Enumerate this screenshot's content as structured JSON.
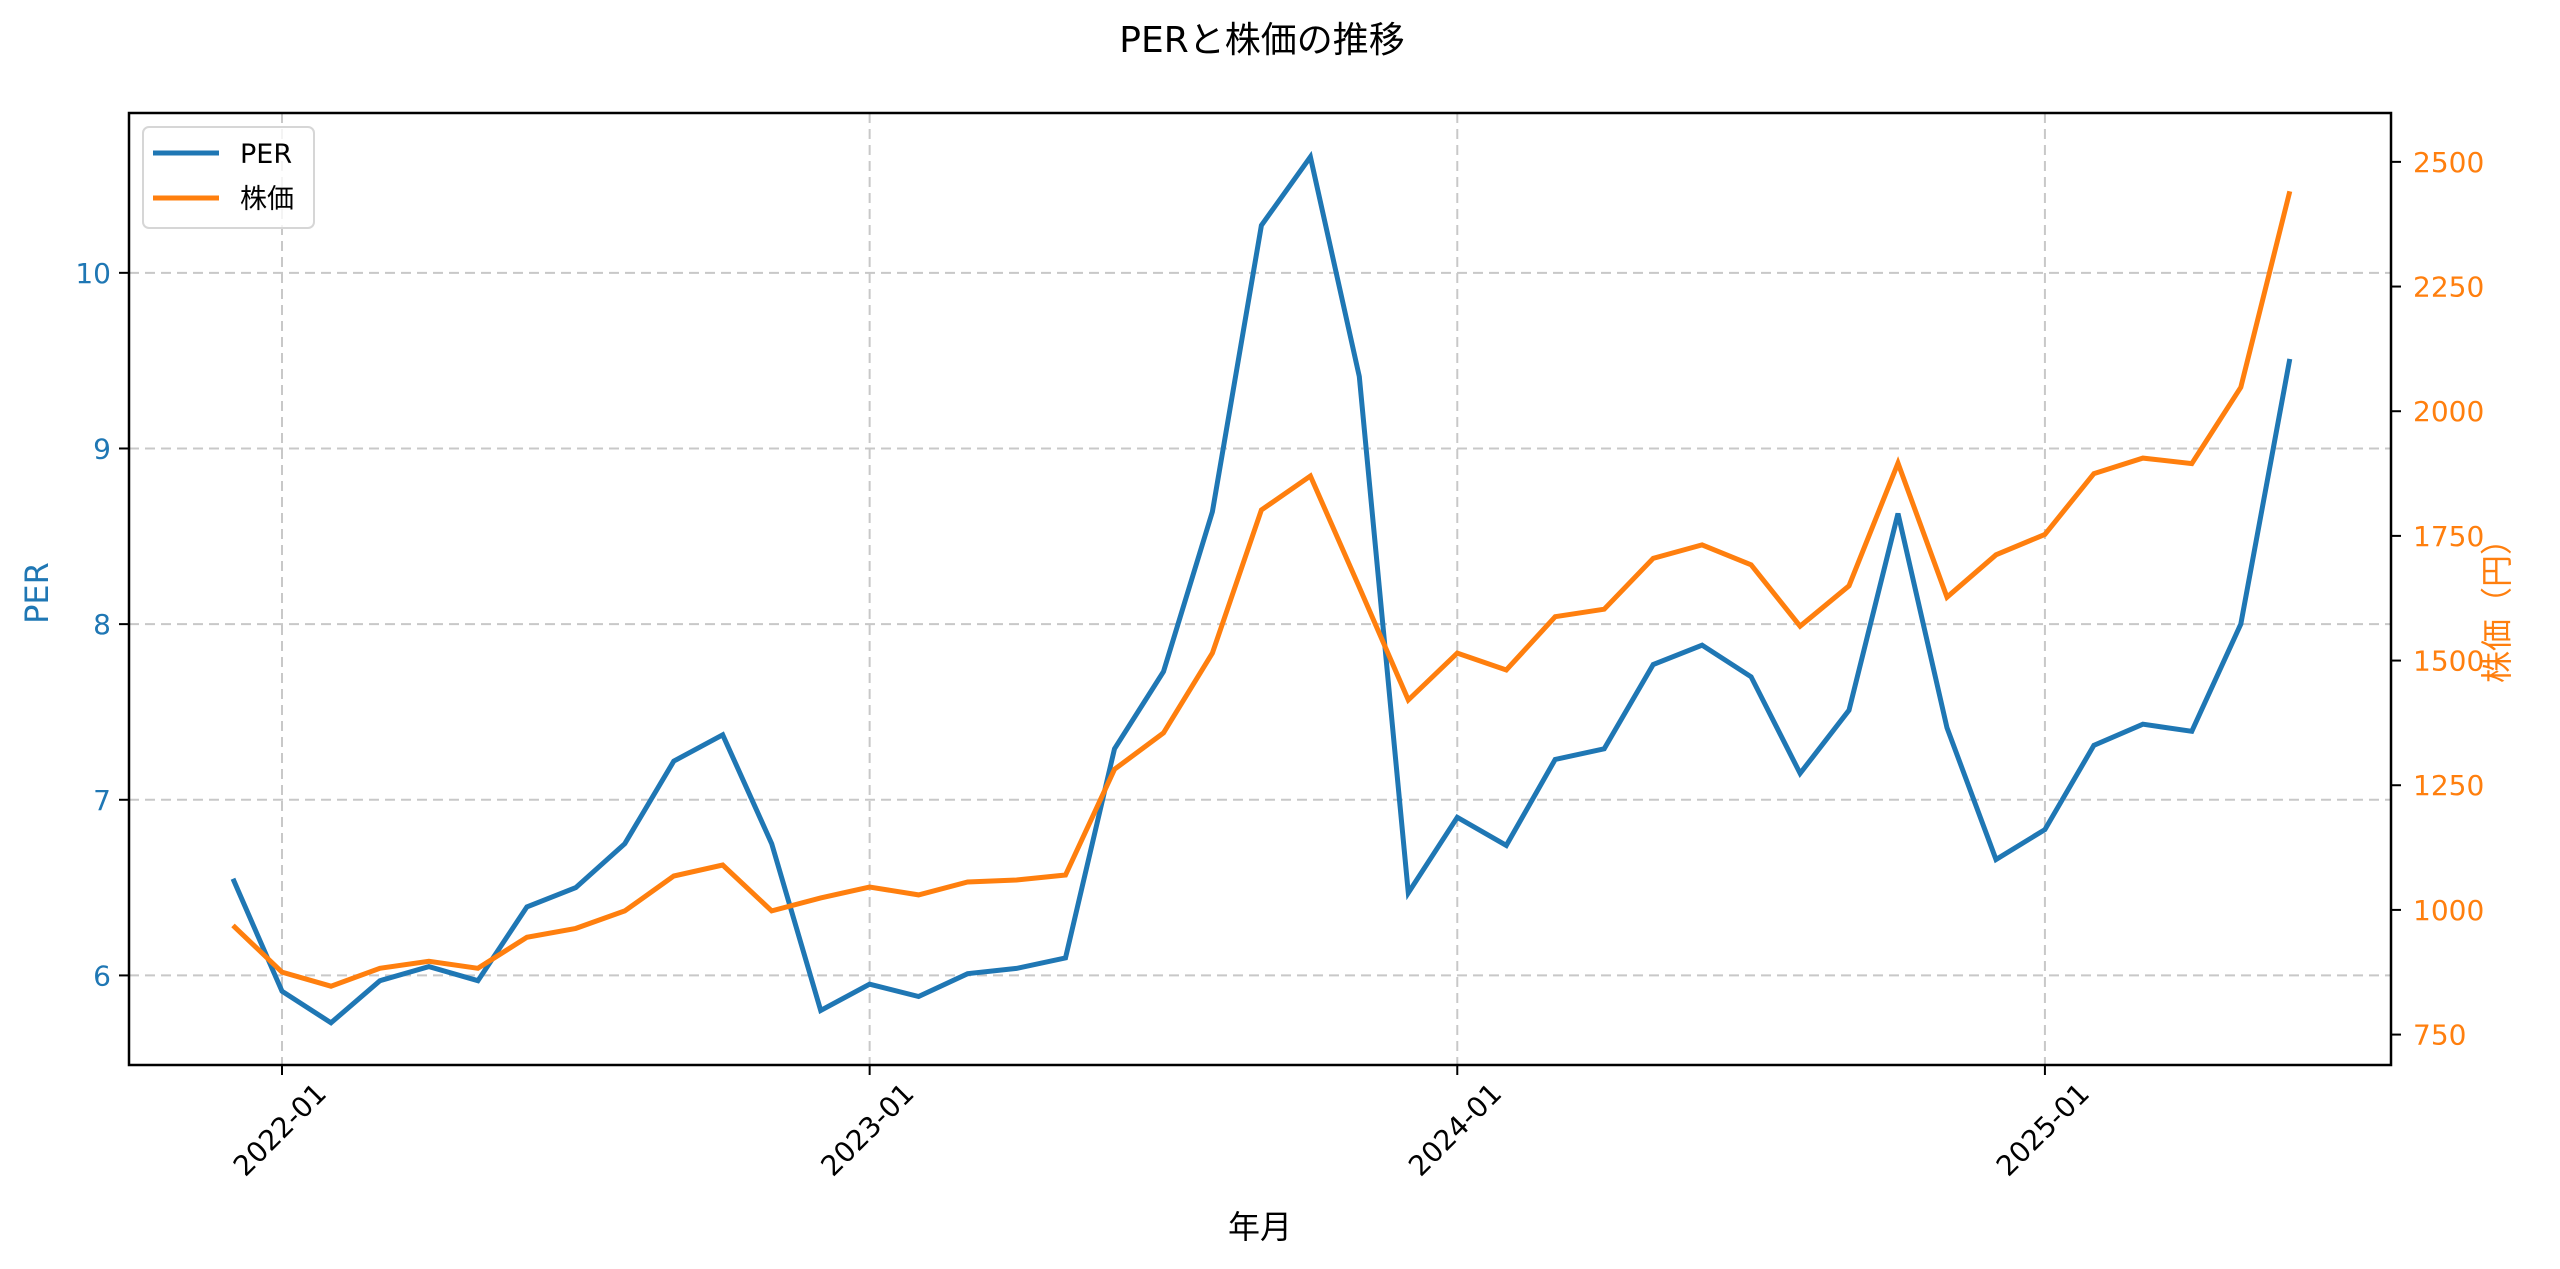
{
  "chart_data": {
    "type": "line",
    "title": "PERと株価の推移",
    "xlabel": "年月",
    "ylabel": "PER",
    "y2label": "株価（円）",
    "x": [
      "2021-12",
      "2022-01",
      "2022-02",
      "2022-03",
      "2022-04",
      "2022-05",
      "2022-06",
      "2022-07",
      "2022-08",
      "2022-09",
      "2022-10",
      "2022-11",
      "2022-12",
      "2023-01",
      "2023-02",
      "2023-03",
      "2023-04",
      "2023-05",
      "2023-06",
      "2023-07",
      "2023-08",
      "2023-09",
      "2023-10",
      "2023-11",
      "2023-12",
      "2024-01",
      "2024-02",
      "2024-03",
      "2024-04",
      "2024-05",
      "2024-06",
      "2024-07",
      "2024-08",
      "2024-09",
      "2024-10",
      "2024-11",
      "2024-12",
      "2025-01",
      "2025-02",
      "2025-03",
      "2025-04",
      "2025-05",
      "2025-06"
    ],
    "x_ticks": [
      "2022-01",
      "2023-01",
      "2024-01",
      "2025-01"
    ],
    "x_tick_index": [
      1,
      13,
      25,
      37
    ],
    "series": [
      {
        "name": "PER",
        "axis": "left",
        "color": "#1f77b4",
        "values": [
          6.55,
          5.91,
          5.73,
          5.97,
          6.05,
          5.97,
          6.39,
          6.5,
          6.75,
          7.22,
          7.37,
          6.75,
          5.8,
          5.95,
          5.88,
          6.01,
          6.04,
          6.1,
          7.29,
          7.73,
          8.64,
          10.27,
          10.66,
          9.41,
          6.47,
          6.9,
          6.74,
          7.23,
          7.29,
          7.77,
          7.88,
          7.7,
          7.15,
          7.51,
          8.63,
          7.41,
          6.66,
          6.83,
          7.31,
          7.43,
          7.39,
          8.0,
          9.51
        ]
      },
      {
        "name": "株価",
        "axis": "right",
        "color": "#ff7f0e",
        "values": [
          969,
          875,
          847,
          883,
          897,
          883,
          945,
          963,
          998,
          1068,
          1090,
          998,
          1024,
          1046,
          1030,
          1056,
          1060,
          1070,
          1282,
          1355,
          1515,
          1802,
          1870,
          1647,
          1421,
          1515,
          1481,
          1588,
          1603,
          1705,
          1732,
          1692,
          1569,
          1650,
          1896,
          1627,
          1712,
          1753,
          1875,
          1906,
          1895,
          2048,
          2441
        ]
      }
    ],
    "ylim": [
      5.49,
      10.91
    ],
    "y_ticks": [
      6,
      7,
      8,
      9,
      10
    ],
    "y2lim": [
      689,
      2598
    ],
    "y2_ticks": [
      750,
      1000,
      1250,
      1500,
      1750,
      2000,
      2250,
      2500
    ],
    "grid": true,
    "legend_position": "upper left"
  },
  "colors": {
    "per": "#1f77b4",
    "price": "#ff7f0e",
    "grid": "#c8c8c8"
  }
}
